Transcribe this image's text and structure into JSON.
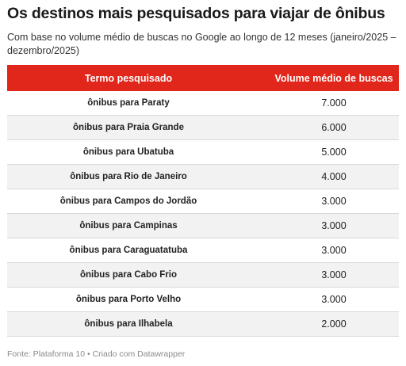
{
  "title": "Os destinos mais pesquisados para viajar de ônibus",
  "subtitle": "Com base no volume médio de buscas no Google ao longo de 12 meses (janeiro/2025 – dezembro/2025)",
  "colors": {
    "header_bg": "#e1261c",
    "header_text": "#ffffff",
    "alt_row_bg": "#f2f2f2"
  },
  "table": {
    "headers": [
      "Termo pesquisado",
      "Volume médio de buscas"
    ],
    "rows": [
      [
        "ônibus para Paraty",
        "7.000"
      ],
      [
        "ônibus para Praia Grande",
        "6.000"
      ],
      [
        "ônibus para Ubatuba",
        "5.000"
      ],
      [
        "ônibus para Rio de Janeiro",
        "4.000"
      ],
      [
        "ônibus para Campos do Jordão",
        "3.000"
      ],
      [
        "ônibus para Campinas",
        "3.000"
      ],
      [
        "ônibus para Caraguatatuba",
        "3.000"
      ],
      [
        "ônibus para Cabo Frio",
        "3.000"
      ],
      [
        "ônibus para Porto Velho",
        "3.000"
      ],
      [
        "ônibus para Ilhabela",
        "2.000"
      ]
    ]
  },
  "footer": "Fonte: Plataforma 10 • Criado com Datawrapper"
}
